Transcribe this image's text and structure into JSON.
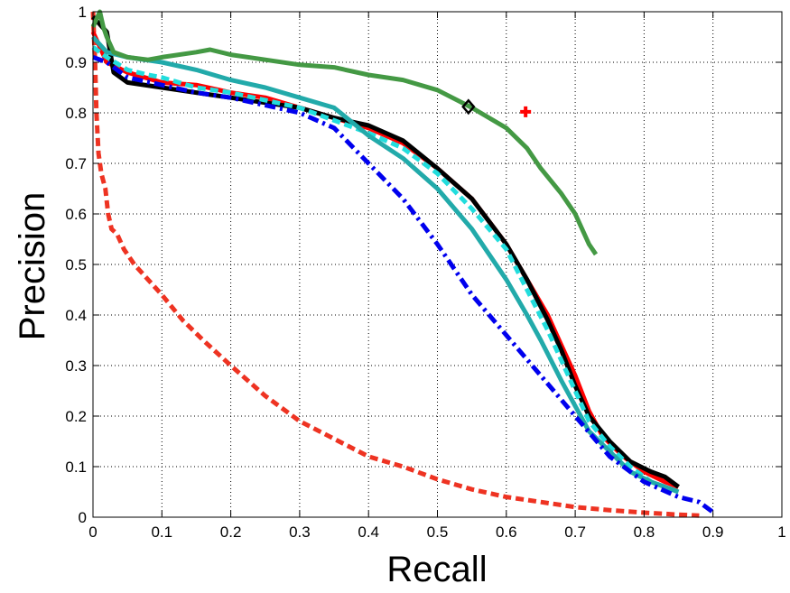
{
  "chart_data": {
    "type": "line",
    "xlabel": "Recall",
    "ylabel": "Precision",
    "xlim": [
      0,
      1
    ],
    "ylim": [
      0,
      1
    ],
    "grid": true,
    "xticks": [
      "0",
      "0.1",
      "0.2",
      "0.3",
      "0.4",
      "0.5",
      "0.6",
      "0.7",
      "0.8",
      "0.9",
      "1"
    ],
    "yticks": [
      "0",
      "0.1",
      "0.2",
      "0.3",
      "0.4",
      "0.5",
      "0.6",
      "0.7",
      "0.8",
      "0.9",
      "1"
    ],
    "series": [
      {
        "color": "#ee3322",
        "style": "dashed",
        "points": [
          [
            0.0,
            1.0
          ],
          [
            0.003,
            0.9
          ],
          [
            0.005,
            0.8
          ],
          [
            0.008,
            0.72
          ],
          [
            0.012,
            0.68
          ],
          [
            0.018,
            0.65
          ],
          [
            0.022,
            0.6
          ],
          [
            0.027,
            0.57
          ],
          [
            0.035,
            0.56
          ],
          [
            0.045,
            0.53
          ],
          [
            0.06,
            0.5
          ],
          [
            0.08,
            0.47
          ],
          [
            0.1,
            0.44
          ],
          [
            0.13,
            0.39
          ],
          [
            0.16,
            0.35
          ],
          [
            0.2,
            0.3
          ],
          [
            0.25,
            0.24
          ],
          [
            0.3,
            0.19
          ],
          [
            0.35,
            0.155
          ],
          [
            0.4,
            0.12
          ],
          [
            0.45,
            0.1
          ],
          [
            0.5,
            0.075
          ],
          [
            0.55,
            0.055
          ],
          [
            0.6,
            0.04
          ],
          [
            0.65,
            0.03
          ],
          [
            0.7,
            0.02
          ],
          [
            0.75,
            0.014
          ],
          [
            0.8,
            0.009
          ],
          [
            0.85,
            0.005
          ],
          [
            0.88,
            0.003
          ]
        ]
      },
      {
        "color": "#ff0000",
        "style": "solid",
        "points": [
          [
            0.0,
            0.96
          ],
          [
            0.02,
            0.9
          ],
          [
            0.05,
            0.88
          ],
          [
            0.1,
            0.86
          ],
          [
            0.15,
            0.855
          ],
          [
            0.2,
            0.84
          ],
          [
            0.25,
            0.83
          ],
          [
            0.3,
            0.81
          ],
          [
            0.35,
            0.79
          ],
          [
            0.4,
            0.77
          ],
          [
            0.45,
            0.74
          ],
          [
            0.5,
            0.69
          ],
          [
            0.55,
            0.63
          ],
          [
            0.6,
            0.54
          ],
          [
            0.63,
            0.47
          ],
          [
            0.66,
            0.4
          ],
          [
            0.68,
            0.34
          ],
          [
            0.7,
            0.28
          ],
          [
            0.72,
            0.21
          ],
          [
            0.74,
            0.16
          ],
          [
            0.77,
            0.12
          ],
          [
            0.8,
            0.09
          ],
          [
            0.83,
            0.07
          ],
          [
            0.85,
            0.06
          ]
        ]
      },
      {
        "color": "#000000",
        "style": "solid",
        "points": [
          [
            0.0,
            0.99
          ],
          [
            0.02,
            0.96
          ],
          [
            0.03,
            0.88
          ],
          [
            0.05,
            0.86
          ],
          [
            0.1,
            0.85
          ],
          [
            0.15,
            0.84
          ],
          [
            0.2,
            0.83
          ],
          [
            0.25,
            0.82
          ],
          [
            0.3,
            0.81
          ],
          [
            0.35,
            0.79
          ],
          [
            0.4,
            0.775
          ],
          [
            0.45,
            0.745
          ],
          [
            0.5,
            0.69
          ],
          [
            0.55,
            0.63
          ],
          [
            0.6,
            0.54
          ],
          [
            0.63,
            0.47
          ],
          [
            0.66,
            0.39
          ],
          [
            0.68,
            0.33
          ],
          [
            0.7,
            0.26
          ],
          [
            0.72,
            0.2
          ],
          [
            0.75,
            0.15
          ],
          [
            0.78,
            0.11
          ],
          [
            0.81,
            0.09
          ],
          [
            0.83,
            0.08
          ],
          [
            0.85,
            0.06
          ]
        ]
      },
      {
        "color": "#22dddd",
        "style": "dashed",
        "points": [
          [
            0.0,
            0.93
          ],
          [
            0.02,
            0.91
          ],
          [
            0.05,
            0.885
          ],
          [
            0.08,
            0.875
          ],
          [
            0.1,
            0.87
          ],
          [
            0.15,
            0.85
          ],
          [
            0.2,
            0.84
          ],
          [
            0.25,
            0.825
          ],
          [
            0.3,
            0.81
          ],
          [
            0.35,
            0.785
          ],
          [
            0.4,
            0.76
          ],
          [
            0.45,
            0.73
          ],
          [
            0.5,
            0.68
          ],
          [
            0.55,
            0.61
          ],
          [
            0.6,
            0.53
          ],
          [
            0.63,
            0.45
          ],
          [
            0.66,
            0.37
          ],
          [
            0.68,
            0.31
          ],
          [
            0.7,
            0.25
          ],
          [
            0.72,
            0.19
          ],
          [
            0.75,
            0.14
          ],
          [
            0.78,
            0.1
          ],
          [
            0.81,
            0.07
          ],
          [
            0.83,
            0.06
          ],
          [
            0.85,
            0.05
          ]
        ]
      },
      {
        "color": "#22aaaa",
        "style": "solid",
        "points": [
          [
            0.0,
            0.95
          ],
          [
            0.02,
            0.92
          ],
          [
            0.05,
            0.91
          ],
          [
            0.1,
            0.9
          ],
          [
            0.15,
            0.885
          ],
          [
            0.2,
            0.865
          ],
          [
            0.25,
            0.85
          ],
          [
            0.3,
            0.83
          ],
          [
            0.35,
            0.81
          ],
          [
            0.4,
            0.755
          ],
          [
            0.45,
            0.71
          ],
          [
            0.5,
            0.65
          ],
          [
            0.55,
            0.57
          ],
          [
            0.6,
            0.47
          ],
          [
            0.63,
            0.4
          ],
          [
            0.65,
            0.35
          ],
          [
            0.68,
            0.27
          ],
          [
            0.7,
            0.22
          ],
          [
            0.72,
            0.17
          ],
          [
            0.75,
            0.13
          ],
          [
            0.78,
            0.09
          ],
          [
            0.81,
            0.07
          ],
          [
            0.83,
            0.06
          ],
          [
            0.85,
            0.05
          ]
        ]
      },
      {
        "color": "#0000ee",
        "style": "dashdot",
        "points": [
          [
            0.0,
            0.91
          ],
          [
            0.02,
            0.9
          ],
          [
            0.05,
            0.87
          ],
          [
            0.1,
            0.855
          ],
          [
            0.15,
            0.84
          ],
          [
            0.2,
            0.83
          ],
          [
            0.25,
            0.815
          ],
          [
            0.3,
            0.8
          ],
          [
            0.35,
            0.77
          ],
          [
            0.4,
            0.7
          ],
          [
            0.45,
            0.63
          ],
          [
            0.5,
            0.54
          ],
          [
            0.55,
            0.44
          ],
          [
            0.6,
            0.36
          ],
          [
            0.65,
            0.28
          ],
          [
            0.7,
            0.2
          ],
          [
            0.75,
            0.12
          ],
          [
            0.8,
            0.07
          ],
          [
            0.85,
            0.04
          ],
          [
            0.88,
            0.03
          ],
          [
            0.9,
            0.01
          ]
        ]
      },
      {
        "color": "#449944",
        "style": "solid",
        "points": [
          [
            0.0,
            0.97
          ],
          [
            0.01,
            1.0
          ],
          [
            0.015,
            0.97
          ],
          [
            0.02,
            0.95
          ],
          [
            0.03,
            0.92
          ],
          [
            0.05,
            0.91
          ],
          [
            0.08,
            0.905
          ],
          [
            0.1,
            0.91
          ],
          [
            0.15,
            0.92
          ],
          [
            0.17,
            0.925
          ],
          [
            0.2,
            0.915
          ],
          [
            0.25,
            0.905
          ],
          [
            0.3,
            0.895
          ],
          [
            0.35,
            0.89
          ],
          [
            0.4,
            0.875
          ],
          [
            0.45,
            0.865
          ],
          [
            0.5,
            0.845
          ],
          [
            0.55,
            0.81
          ],
          [
            0.6,
            0.77
          ],
          [
            0.63,
            0.73
          ],
          [
            0.65,
            0.69
          ],
          [
            0.68,
            0.64
          ],
          [
            0.7,
            0.6
          ],
          [
            0.72,
            0.54
          ],
          [
            0.73,
            0.52
          ]
        ]
      }
    ],
    "markers": [
      {
        "shape": "diamond",
        "color": "#000000",
        "x": 0.545,
        "y": 0.812
      },
      {
        "shape": "plus",
        "color": "#ff0000",
        "x": 0.628,
        "y": 0.802
      }
    ]
  }
}
